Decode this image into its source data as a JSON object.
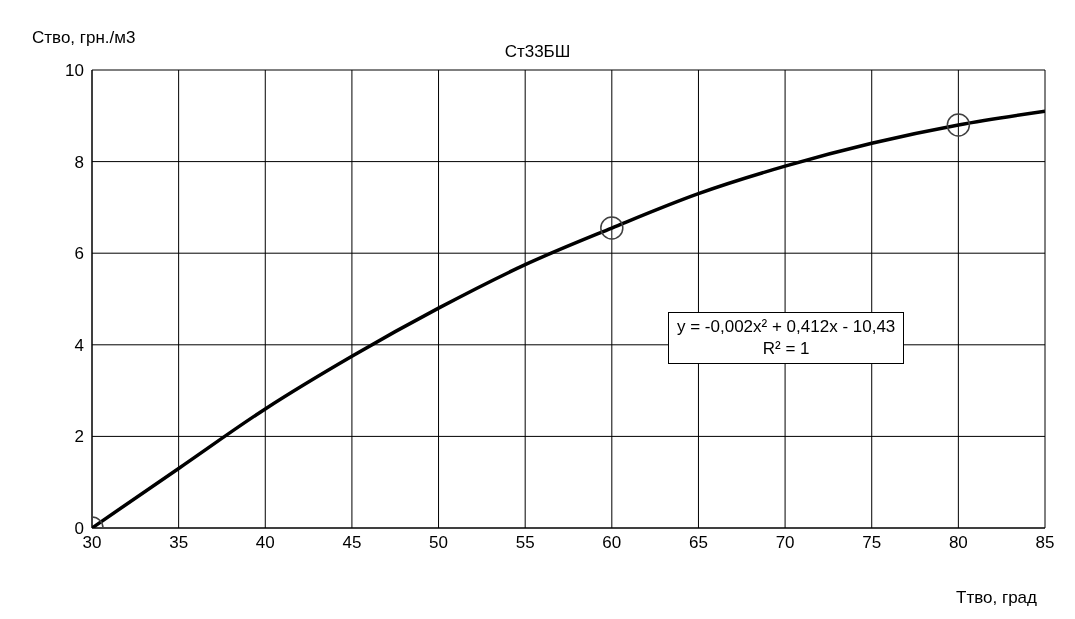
{
  "chart_data": {
    "type": "scatter",
    "title": "Ст33БШ",
    "xlabel": "Ттво, град",
    "ylabel": "Ство, грн./м3",
    "annotations": [
      "y = -0,002x² + 0,412x - 10,43",
      "R² = 1"
    ],
    "xlim": [
      30,
      85
    ],
    "xticks": [
      30,
      35,
      40,
      45,
      50,
      55,
      60,
      65,
      70,
      75,
      80,
      85
    ],
    "ylim": [
      0,
      10
    ],
    "yticks": [
      0,
      2,
      4,
      6,
      8,
      10
    ],
    "grid": true,
    "series": [
      {
        "color": "#404040",
        "marker": "circle",
        "x": [
          30,
          60,
          80
        ],
        "values": [
          0,
          6.55,
          8.8
        ]
      },
      {
        "type": "line",
        "color": "#000000",
        "marker": "none",
        "line_style": "solid",
        "x": [
          30,
          35,
          40,
          45,
          50,
          55,
          60,
          65,
          70,
          75,
          80,
          85
        ],
        "values": [
          0,
          1.3,
          2.6,
          3.75,
          4.8,
          5.75,
          6.55,
          7.3,
          7.9,
          8.4,
          8.8,
          9.1
        ]
      }
    ]
  }
}
